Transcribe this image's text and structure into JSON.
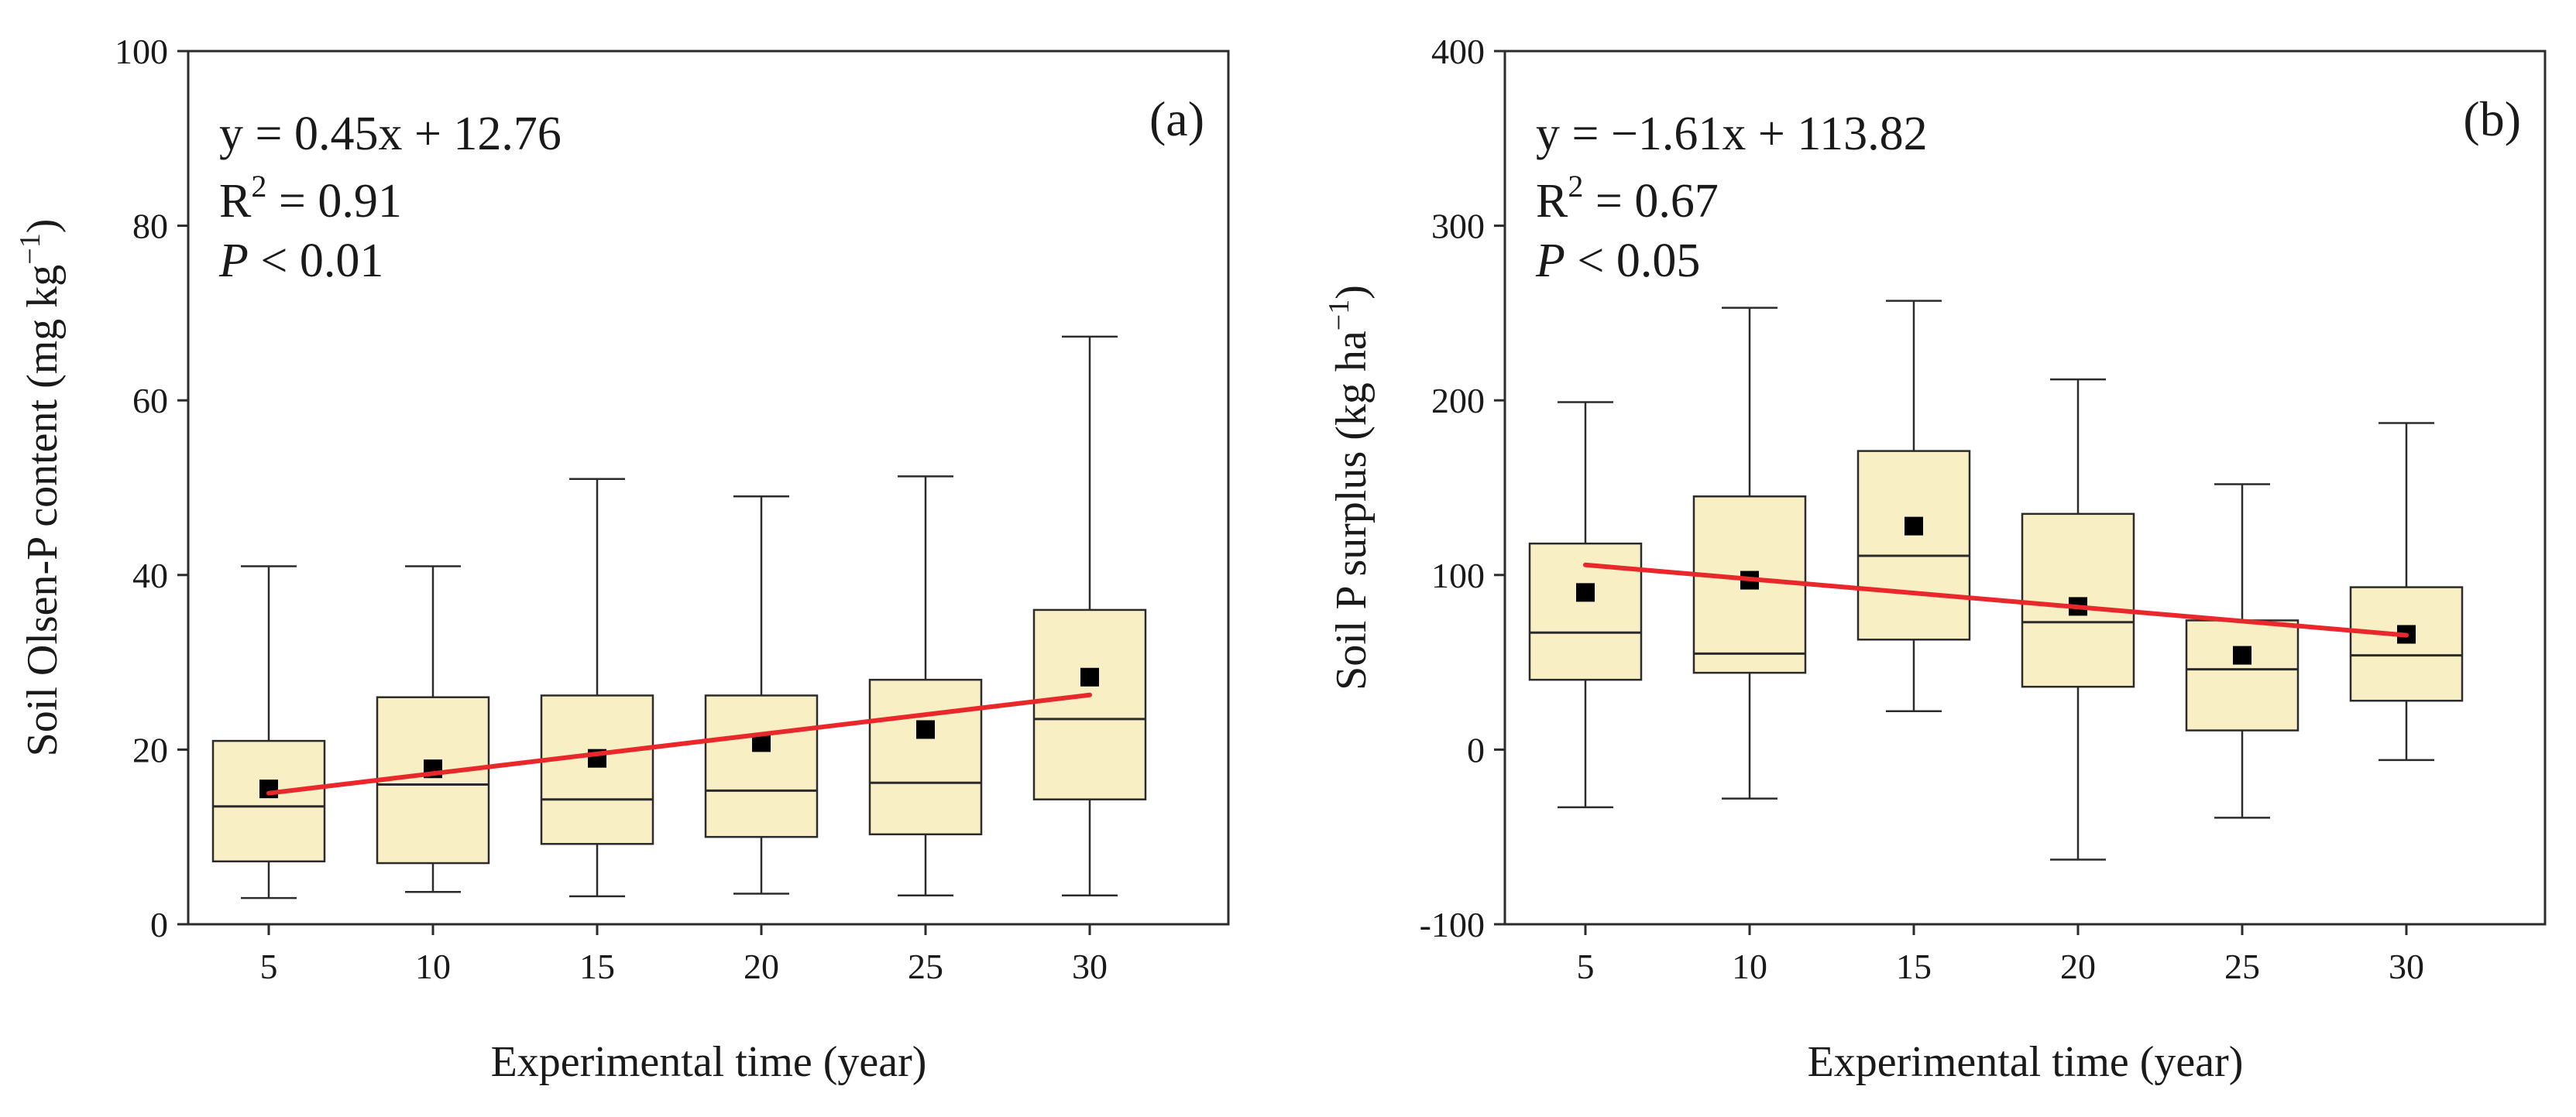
{
  "colors": {
    "box_fill": "#f8f0c4",
    "regression": "#e8282a",
    "mean_marker": "#000000",
    "axis": "#2b2b2b"
  },
  "chart_data": [
    {
      "type": "box",
      "panel_label": "(a)",
      "xlabel": "Experimental time (year)",
      "ylabel_main": "Soil Olsen-P content (mg kg",
      "ylabel_sup": "−1",
      "ylabel_end": ")",
      "ylim": [
        0,
        100
      ],
      "yticks": [
        0,
        20,
        40,
        60,
        80,
        100
      ],
      "categories": [
        "5",
        "10",
        "15",
        "20",
        "25",
        "30"
      ],
      "boxes": [
        {
          "min": 3.0,
          "q1": 7.2,
          "median": 13.5,
          "q3": 21.0,
          "max": 41.0,
          "mean": 15.5
        },
        {
          "min": 3.7,
          "q1": 7.0,
          "median": 16.0,
          "q3": 26.0,
          "max": 41.0,
          "mean": 17.8
        },
        {
          "min": 3.2,
          "q1": 9.2,
          "median": 14.3,
          "q3": 26.2,
          "max": 51.0,
          "mean": 19.0
        },
        {
          "min": 3.5,
          "q1": 10.0,
          "median": 15.3,
          "q3": 26.2,
          "max": 49.0,
          "mean": 20.8
        },
        {
          "min": 3.3,
          "q1": 10.3,
          "median": 16.2,
          "q3": 28.0,
          "max": 51.3,
          "mean": 22.3
        },
        {
          "min": 3.3,
          "q1": 14.3,
          "median": 23.5,
          "q3": 36.0,
          "max": 67.3,
          "mean": 28.3
        }
      ],
      "regression": {
        "slope": 0.45,
        "intercept": 12.76,
        "x_start": 5,
        "x_end": 30
      },
      "annotation": {
        "equation": "y = 0.45x + 12.76",
        "r2_label": "R",
        "r2_sup": "2",
        "r2_value": " = 0.91",
        "p_label": "P",
        "p_value": " < 0.01"
      }
    },
    {
      "type": "box",
      "panel_label": "(b)",
      "xlabel": "Experimental time (year)",
      "ylabel_main": "Soil P surplus (kg ha",
      "ylabel_sup": "−1",
      "ylabel_end": ")",
      "ylim": [
        -100,
        400
      ],
      "yticks": [
        -100,
        0,
        100,
        200,
        300,
        400
      ],
      "categories": [
        "5",
        "10",
        "15",
        "20",
        "25",
        "30"
      ],
      "boxes": [
        {
          "min": -33,
          "q1": 40,
          "median": 67,
          "q3": 118,
          "max": 199,
          "mean": 90
        },
        {
          "min": -28,
          "q1": 44,
          "median": 55,
          "q3": 145,
          "max": 253,
          "mean": 97
        },
        {
          "min": 22,
          "q1": 63,
          "median": 111,
          "q3": 171,
          "max": 257,
          "mean": 128
        },
        {
          "min": -63,
          "q1": 36,
          "median": 73,
          "q3": 135,
          "max": 212,
          "mean": 82
        },
        {
          "min": -39,
          "q1": 11,
          "median": 46,
          "q3": 74,
          "max": 152,
          "mean": 54
        },
        {
          "min": -6,
          "q1": 28,
          "median": 54,
          "q3": 93,
          "max": 187,
          "mean": 66
        }
      ],
      "regression": {
        "slope": -1.61,
        "intercept": 113.82,
        "x_start": 5,
        "x_end": 30
      },
      "annotation": {
        "equation": "y = −1.61x + 113.82",
        "r2_label": "R",
        "r2_sup": "2",
        "r2_value": " = 0.67",
        "p_label": "P",
        "p_value": " < 0.05"
      }
    }
  ]
}
